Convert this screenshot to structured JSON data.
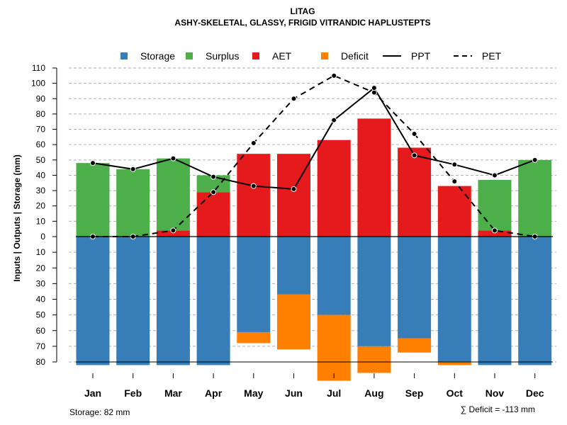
{
  "chart_data": {
    "type": "bar",
    "title": "LITAG",
    "subtitle": "ASHY-SKELETAL, GLASSY, FRIGID VITRANDIC HAPLUSTEPTS",
    "ylabel": "Inputs | Outputs | Storage     (mm)",
    "categories": [
      "Jan",
      "Feb",
      "Mar",
      "Apr",
      "May",
      "Jun",
      "Jul",
      "Aug",
      "Sep",
      "Oct",
      "Nov",
      "Dec"
    ],
    "ylim_top": [
      0,
      110
    ],
    "ylim_bottom": [
      0,
      80
    ],
    "yticks_top": [
      "110",
      "100",
      "90",
      "80",
      "70",
      "60",
      "50",
      "40",
      "30",
      "20",
      "10",
      "0"
    ],
    "yticks_bottom": [
      "10",
      "20",
      "30",
      "40",
      "50",
      "60",
      "70",
      "80"
    ],
    "legend": [
      {
        "label": "Storage",
        "kind": "box",
        "color": "#377EB8"
      },
      {
        "label": "Surplus",
        "kind": "box",
        "color": "#4DAF4A"
      },
      {
        "label": "AET",
        "kind": "box",
        "color": "#E41A1C"
      },
      {
        "label": "Deficit",
        "kind": "box",
        "color": "#FF7F00"
      },
      {
        "label": "PPT",
        "kind": "solid",
        "color": "#000000"
      },
      {
        "label": "PET",
        "kind": "dashed",
        "color": "#000000"
      }
    ],
    "series": [
      {
        "name": "AET",
        "color": "#E41A1C",
        "values": [
          0,
          0,
          4,
          29,
          54,
          54,
          63,
          77,
          58,
          33,
          4,
          0
        ]
      },
      {
        "name": "Surplus",
        "color": "#4DAF4A",
        "values": [
          48,
          44,
          47,
          11,
          0,
          0,
          0,
          0,
          0,
          0,
          33,
          50
        ]
      },
      {
        "name": "Storage",
        "color": "#377EB8",
        "values": [
          82,
          82,
          82,
          82,
          61,
          37,
          50,
          70,
          65,
          80,
          82,
          82
        ]
      },
      {
        "name": "Deficit",
        "color": "#FF7F00",
        "values": [
          0,
          0,
          0,
          0,
          7,
          35,
          42,
          17,
          9,
          2,
          0,
          0
        ]
      },
      {
        "name": "PPT",
        "color": "#000000",
        "values": [
          48,
          44,
          51,
          39,
          33,
          31,
          76,
          97,
          53,
          47,
          40,
          50
        ]
      },
      {
        "name": "PET",
        "color": "#000000",
        "values": [
          0,
          0,
          4,
          29,
          61,
          90,
          105,
          94,
          67,
          36,
          4,
          0
        ]
      }
    ],
    "footer_left": "Storage: 82 mm",
    "footer_right": "∑ Deficit = -113 mm"
  }
}
